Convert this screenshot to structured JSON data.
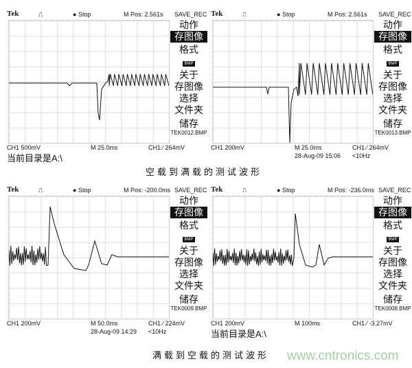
{
  "panels": [
    {
      "brand": "Tek",
      "trigger_icon": "pulse-icon",
      "state": "Stop",
      "mpos": "M Pos: 2.561s",
      "menu_title": "SAVE_REC",
      "menu": {
        "action": "动作",
        "action_value": "存图像",
        "format": "格式",
        "format_value": "BMP",
        "about": "关于",
        "about_value": "存图像",
        "select": "选择",
        "select_value": "文件夹",
        "save": "储存",
        "file": "TEK0012.BMP"
      },
      "ch": "CH1  500mV",
      "timebase": "M 25.0ms",
      "trigger": "CH1 ∕ 264mV",
      "date": "",
      "freq": "",
      "dir": "当前目录是A:\\"
    },
    {
      "brand": "Tek",
      "trigger_icon": "pulse-icon",
      "state": "Stop",
      "mpos": "M Pos: 2.561s",
      "menu_title": "SAVE_REC",
      "menu": {
        "action": "动作",
        "action_value": "存图像",
        "format": "格式",
        "format_value": "BMP",
        "about": "关于",
        "about_value": "存图像",
        "select": "选择",
        "select_value": "文件夹",
        "save": "储存",
        "file": "TEK0013.BMP"
      },
      "ch": "CH1  200mV",
      "timebase": "M 25.0ms",
      "trigger": "CH1 ∕ 264mV",
      "date": "28-Aug-09 15:06",
      "freq": "<10Hz",
      "dir": ""
    },
    {
      "brand": "Tek",
      "trigger_icon": "pulse-icon",
      "state": "Stop",
      "mpos": "M Pos: -200.0ms",
      "menu_title": "SAVE_REC",
      "menu": {
        "action": "动作",
        "action_value": "存图像",
        "format": "格式",
        "format_value": "BMP",
        "about": "关于",
        "about_value": "存图像",
        "select": "选择",
        "select_value": "文件夹",
        "save": "储存",
        "file": "TEK0009.BMP"
      },
      "ch": "CH1  200mV",
      "timebase": "M 50.0ms",
      "trigger": "CH1 ∕ 224mV",
      "date": "28-Aug-09 14:29",
      "freq": "<10Hz",
      "dir": ""
    },
    {
      "brand": "Tek",
      "trigger_icon": "pulse-icon",
      "state": "Stop",
      "mpos": "M Pos: -236.0ms",
      "menu_title": "SAVE_REC",
      "menu": {
        "action": "动作",
        "action_value": "存图像",
        "format": "格式",
        "format_value": "BMP",
        "about": "关于",
        "about_value": "存图像",
        "select": "选择",
        "select_value": "文件夹",
        "save": "储存",
        "file": "TEK0008.BMP"
      },
      "ch": "CH1  200mV",
      "timebase": "M 100ms",
      "trigger": "CH1 ∕ -3.27mV",
      "date": "",
      "freq": "",
      "dir": "当前目录是A:\\"
    }
  ],
  "captions": {
    "top": "空载到满载的测试波形",
    "bottom": "满载到空载的测试波形"
  },
  "watermark": "www.cntronics.com",
  "colors": {
    "trace": "#111111",
    "grid": "#dddddd",
    "watermark": "#9fd3a3"
  }
}
